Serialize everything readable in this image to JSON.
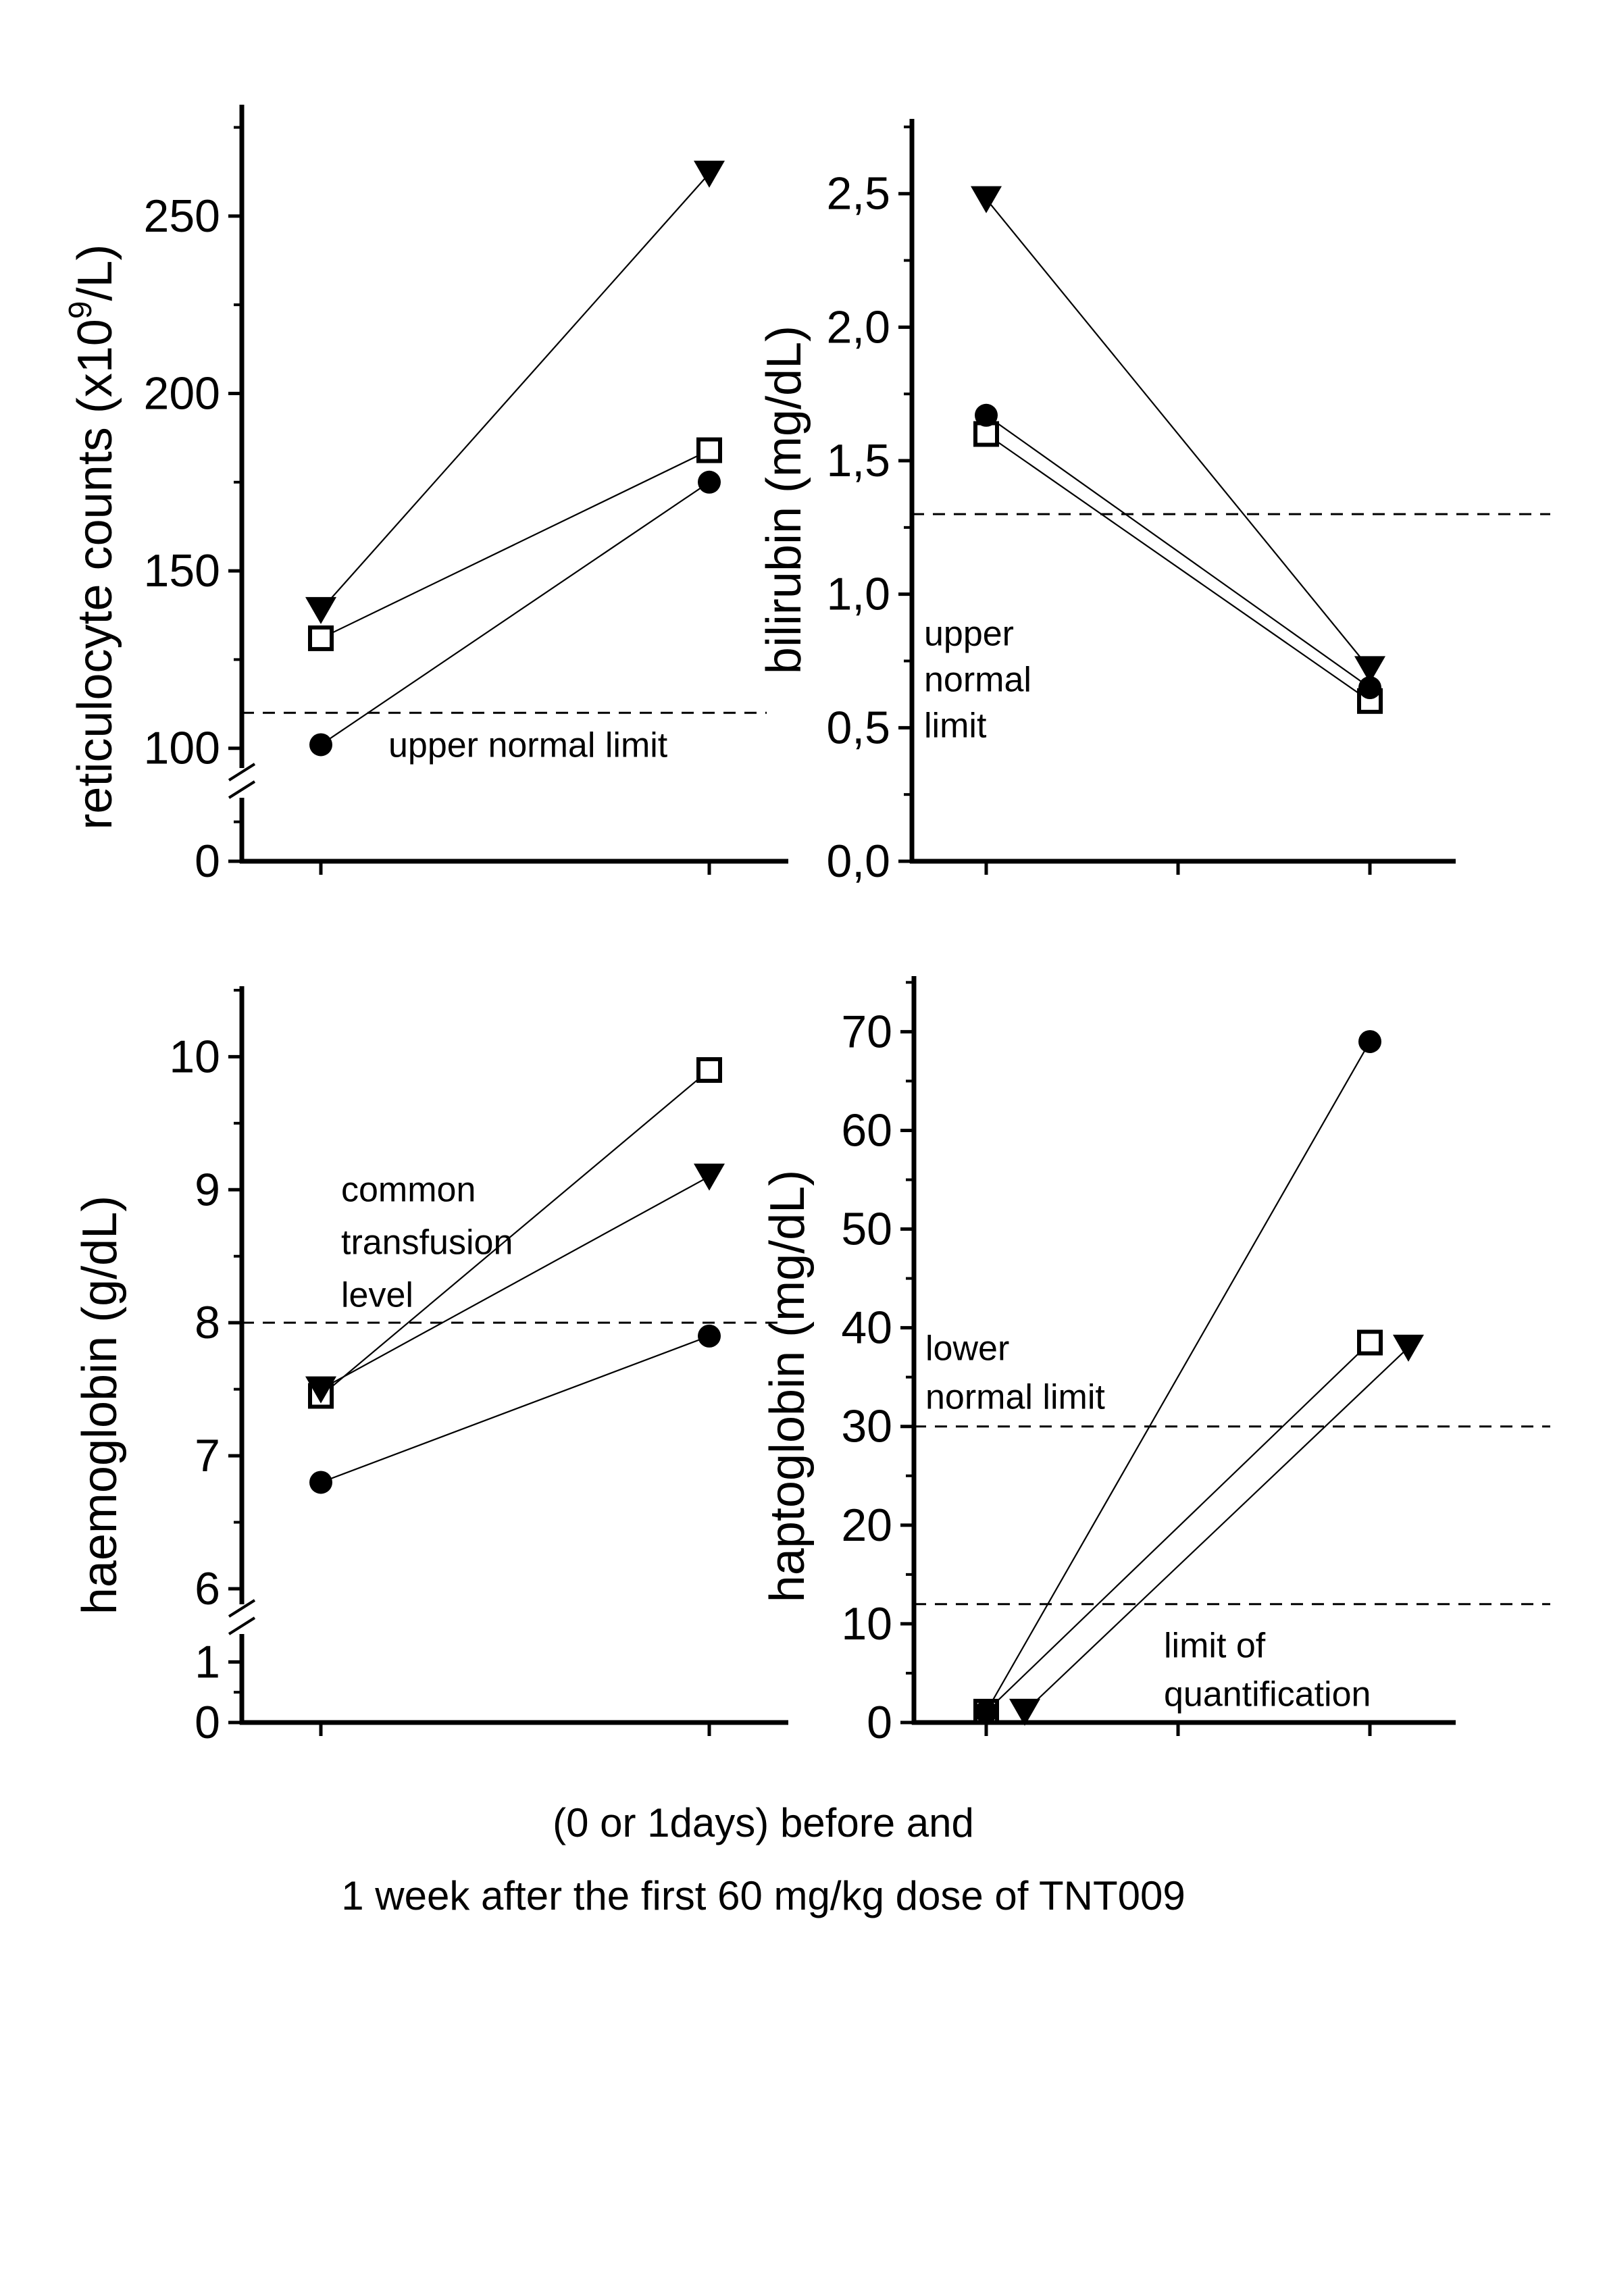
{
  "page": {
    "background": "#ffffff",
    "ink": "#000000"
  },
  "caption": {
    "line1": "(0 or 1days) before and",
    "line2": "1 week after the first 60 mg/kg dose of TNT009"
  },
  "chart_data": [
    {
      "id": "reticulocytes",
      "type": "line",
      "position": "top-left",
      "ylabel": "reticulocyte counts (x10^9/L)",
      "ylabel_parts": [
        {
          "t": "reticulocyte counts (x10"
        },
        {
          "t": "9",
          "sup": true
        },
        {
          "t": "/L)"
        }
      ],
      "x_points": [
        "before",
        "1 week after"
      ],
      "x_tick_labels": [],
      "y_axis": {
        "broken": true,
        "break_between": [
          0,
          91
        ],
        "major_ticks": [
          {
            "v": 0,
            "label": "0"
          },
          {
            "v": 100,
            "label": "100"
          },
          {
            "v": 150,
            "label": "150"
          },
          {
            "v": 200,
            "label": "200"
          },
          {
            "v": 250,
            "label": "250"
          }
        ],
        "minor_ticks": [
          45,
          125,
          175,
          225,
          275
        ],
        "range": [
          0,
          281
        ]
      },
      "ref_lines": [
        {
          "value": 110,
          "label_lines": [
            "upper normal limit"
          ]
        }
      ],
      "series": [
        {
          "name": "patient-open-square",
          "marker": "square-open",
          "values": [
            131,
            184
          ]
        },
        {
          "name": "patient-filled-circle",
          "marker": "circle-filled",
          "values": [
            101,
            175
          ]
        },
        {
          "name": "patient-filled-triangle",
          "marker": "triangle-down-filled",
          "values": [
            139,
            262
          ]
        }
      ]
    },
    {
      "id": "bilirubin",
      "type": "line",
      "position": "top-right",
      "ylabel": "bilirubin (mg/dL)",
      "ylabel_parts": [
        {
          "t": "bilirubin (mg/dL)"
        }
      ],
      "x_points": [
        "before",
        "1 week after"
      ],
      "x_tick_labels": [],
      "y_axis": {
        "broken": false,
        "major_ticks": [
          {
            "v": 0,
            "label": "0,0"
          },
          {
            "v": 0.5,
            "label": "0,5"
          },
          {
            "v": 1,
            "label": "1,0"
          },
          {
            "v": 1.5,
            "label": "1,5"
          },
          {
            "v": 2,
            "label": "2,0"
          },
          {
            "v": 2.5,
            "label": "2,5"
          }
        ],
        "minor_ticks": [
          0.25,
          0.75,
          1.25,
          1.75,
          2.25,
          2.75
        ],
        "range": [
          0,
          2.78
        ]
      },
      "ref_lines": [
        {
          "value": 1.3,
          "label_lines": [
            "upper",
            "normal",
            "limit"
          ]
        }
      ],
      "series": [
        {
          "name": "patient-open-square",
          "marker": "square-open",
          "values": [
            1.6,
            0.6
          ]
        },
        {
          "name": "patient-filled-circle",
          "marker": "circle-filled",
          "values": [
            1.67,
            0.65
          ]
        },
        {
          "name": "patient-filled-triangle",
          "marker": "triangle-down-filled",
          "values": [
            2.48,
            0.72
          ]
        }
      ]
    },
    {
      "id": "haemoglobin",
      "type": "line",
      "position": "bottom-left",
      "ylabel": "haemoglobin (g/dL)",
      "ylabel_parts": [
        {
          "t": "haemoglobin (g/dL)"
        }
      ],
      "x_points": [
        "before",
        "1 week after"
      ],
      "x_tick_labels": [],
      "y_axis": {
        "broken": true,
        "break_between": [
          1.35,
          6
        ],
        "major_ticks": [
          {
            "v": 0,
            "label": "0"
          },
          {
            "v": 1,
            "label": "1"
          },
          {
            "v": 6,
            "label": "6"
          },
          {
            "v": 7,
            "label": "7"
          },
          {
            "v": 8,
            "label": "8"
          },
          {
            "v": 9,
            "label": "9"
          },
          {
            "v": 10,
            "label": "10"
          }
        ],
        "minor_ticks": [
          0.5,
          6.5,
          7.5,
          8.5,
          9.5,
          10.5
        ],
        "range": [
          0,
          10.53
        ]
      },
      "ref_lines": [
        {
          "value": 8,
          "label_lines": [
            "common",
            "transfusion",
            "level"
          ]
        }
      ],
      "series": [
        {
          "name": "patient-open-square",
          "marker": "square-open",
          "values": [
            7.45,
            9.9
          ]
        },
        {
          "name": "patient-filled-circle",
          "marker": "circle-filled",
          "values": [
            6.8,
            7.9
          ]
        },
        {
          "name": "patient-filled-triangle",
          "marker": "triangle-down-filled",
          "values": [
            7.5,
            9.1
          ]
        }
      ]
    },
    {
      "id": "haptoglobin",
      "type": "line",
      "position": "bottom-right",
      "ylabel": "haptoglobin (mg/dL)",
      "ylabel_parts": [
        {
          "t": "haptoglobin (mg/dL)"
        }
      ],
      "x_points": [
        "before",
        "1 week after"
      ],
      "x_tick_labels": [],
      "y_axis": {
        "broken": false,
        "major_ticks": [
          {
            "v": 0,
            "label": "0"
          },
          {
            "v": 10,
            "label": "10"
          },
          {
            "v": 20,
            "label": "20"
          },
          {
            "v": 30,
            "label": "30"
          },
          {
            "v": 40,
            "label": "40"
          },
          {
            "v": 50,
            "label": "50"
          },
          {
            "v": 60,
            "label": "60"
          },
          {
            "v": 70,
            "label": "70"
          }
        ],
        "minor_ticks": [
          5,
          15,
          25,
          35,
          45,
          55,
          65,
          75
        ],
        "range": [
          0,
          75.5
        ]
      },
      "ref_lines": [
        {
          "value": 30,
          "label_lines": [
            "lower",
            "normal limit"
          ]
        },
        {
          "value": 12,
          "label_lines": [
            "limit of",
            "quantification"
          ]
        }
      ],
      "series": [
        {
          "name": "patient-open-square",
          "marker": "square-open",
          "values": [
            1.1,
            38.5
          ]
        },
        {
          "name": "patient-filled-circle",
          "marker": "circle-filled",
          "values": [
            1.1,
            69
          ]
        },
        {
          "name": "patient-filled-triangle",
          "marker": "triangle-down-filled",
          "values": [
            1.1,
            38
          ],
          "dx": [
            57,
            57
          ]
        }
      ]
    }
  ]
}
